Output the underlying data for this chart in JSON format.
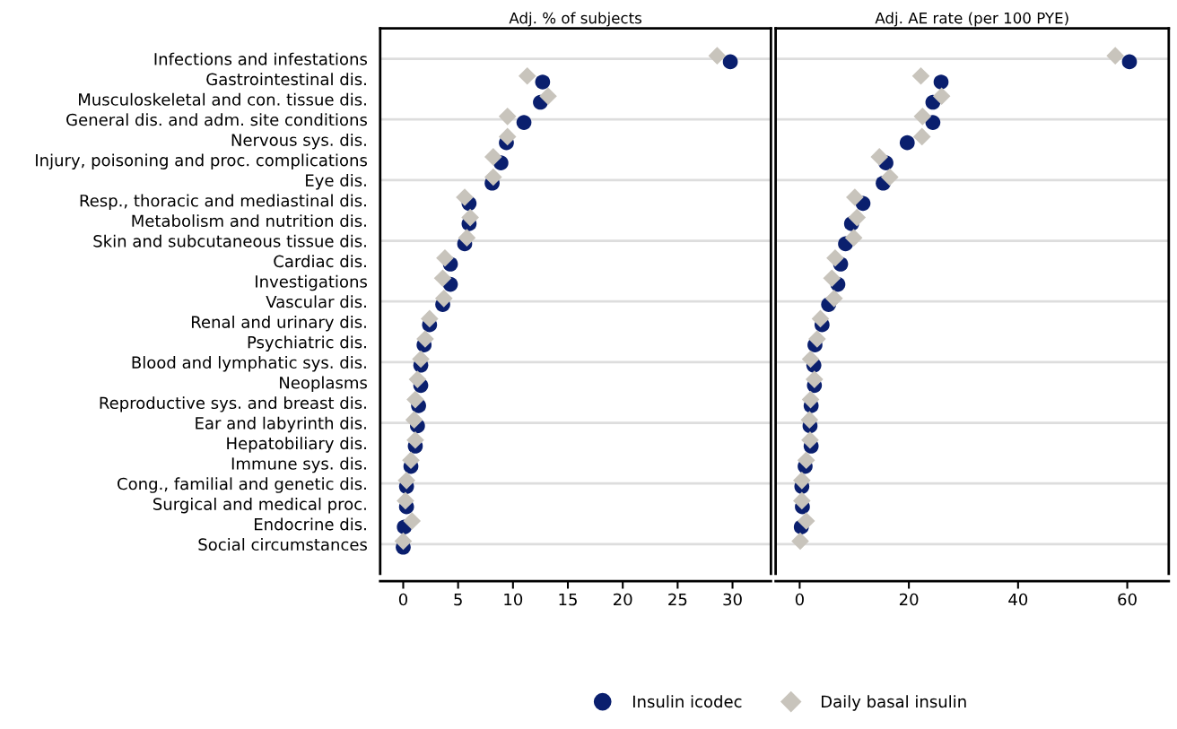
{
  "chart_data": [
    {
      "type": "scatter",
      "title": "Adj. % of subjects",
      "categories": [
        "Infections and infestations",
        "Gastrointestinal dis.",
        "Musculoskeletal and con. tissue dis.",
        "General dis. and adm. site conditions",
        "Nervous sys. dis.",
        "Injury, poisoning and proc. complications",
        "Eye dis.",
        "Resp., thoracic and mediastinal dis.",
        "Metabolism and nutrition dis.",
        "Skin and subcutaneous tissue dis.",
        "Cardiac dis.",
        "Investigations",
        "Vascular dis.",
        "Renal and urinary dis.",
        "Psychiatric dis.",
        "Blood and lymphatic sys. dis.",
        "Neoplasms",
        "Reproductive sys. and breast dis.",
        "Ear and labyrinth dis.",
        "Hepatobiliary dis.",
        "Immune sys. dis.",
        "Cong., familial and genetic dis.",
        "Surgical and medical proc.",
        "Endocrine dis.",
        "Social circumstances"
      ],
      "series": [
        {
          "name": "Insulin icodec",
          "color": "#0a1f6e",
          "marker": "circle",
          "values": [
            29.8,
            12.7,
            12.5,
            11.0,
            9.4,
            8.9,
            8.1,
            6.0,
            6.0,
            5.6,
            4.3,
            4.3,
            3.6,
            2.4,
            1.9,
            1.6,
            1.6,
            1.4,
            1.3,
            1.1,
            0.7,
            0.3,
            0.3,
            0.1,
            0.0
          ]
        },
        {
          "name": "Daily basal insulin",
          "color": "#c8c4bc",
          "marker": "diamond",
          "values": [
            28.6,
            11.3,
            13.2,
            9.5,
            9.5,
            8.2,
            8.2,
            5.6,
            6.1,
            5.8,
            3.8,
            3.6,
            3.7,
            2.4,
            2.0,
            1.6,
            1.3,
            1.1,
            1.0,
            1.1,
            0.7,
            0.3,
            0.2,
            0.8,
            0.0
          ]
        }
      ],
      "xlim": [
        -2.1,
        33.5
      ],
      "xticks": [
        0,
        5,
        10,
        15,
        20,
        25,
        30
      ],
      "orientation": "horizontal",
      "grid": "y",
      "legend": "bottom"
    },
    {
      "type": "scatter",
      "title": "Adj. AE rate (per 100 PYE)",
      "categories": [
        "Infections and infestations",
        "Gastrointestinal dis.",
        "Musculoskeletal and con. tissue dis.",
        "General dis. and adm. site conditions",
        "Nervous sys. dis.",
        "Injury, poisoning and proc. complications",
        "Eye dis.",
        "Resp., thoracic and mediastinal dis.",
        "Metabolism and nutrition dis.",
        "Skin and subcutaneous tissue dis.",
        "Cardiac dis.",
        "Investigations",
        "Vascular dis.",
        "Renal and urinary dis.",
        "Psychiatric dis.",
        "Blood and lymphatic sys. dis.",
        "Neoplasms",
        "Reproductive sys. and breast dis.",
        "Ear and labyrinth dis.",
        "Hepatobiliary dis.",
        "Immune sys. dis.",
        "Cong., familial and genetic dis.",
        "Surgical and medical proc.",
        "Endocrine dis.",
        "Social circumstances"
      ],
      "series": [
        {
          "name": "Insulin icodec",
          "color": "#0a1f6e",
          "marker": "circle",
          "values": [
            60.4,
            25.9,
            24.4,
            24.4,
            19.7,
            15.8,
            15.3,
            11.6,
            9.5,
            8.4,
            7.5,
            7.0,
            5.3,
            4.1,
            2.8,
            2.6,
            2.7,
            2.1,
            1.9,
            2.1,
            1.0,
            0.4,
            0.5,
            0.3,
            null
          ]
        },
        {
          "name": "Daily basal insulin",
          "color": "#c8c4bc",
          "marker": "diamond",
          "values": [
            57.8,
            22.2,
            26.0,
            22.5,
            22.4,
            14.6,
            16.5,
            10.1,
            10.5,
            9.9,
            6.5,
            5.9,
            6.3,
            3.8,
            3.2,
            2.0,
            2.7,
            2.0,
            1.8,
            1.9,
            1.2,
            0.4,
            0.4,
            1.2,
            0.1
          ]
        }
      ],
      "xlim": [
        -4.4,
        67.6
      ],
      "xticks": [
        0,
        20,
        40,
        60
      ],
      "orientation": "horizontal",
      "grid": "y",
      "tick_labels": "x"
    }
  ]
}
